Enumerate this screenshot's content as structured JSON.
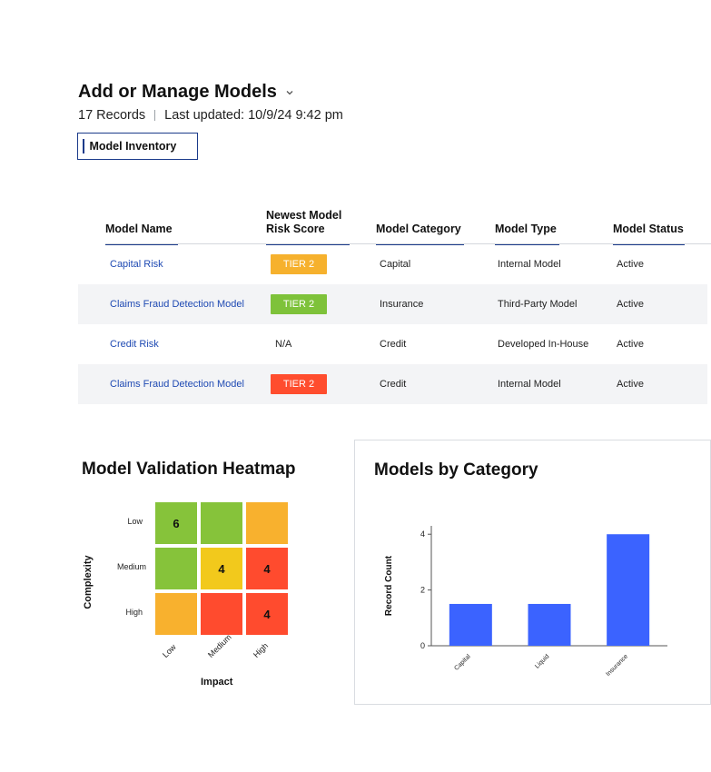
{
  "header": {
    "title": "Add or Manage Models",
    "records": "17 Records",
    "last_updated": "Last updated: 10/9/24 9:42 pm",
    "tab_label": "Model Inventory"
  },
  "table": {
    "columns": {
      "name": "Model Name",
      "score_line1": "Newest Model",
      "score_line2": "Risk Score",
      "category": "Model Category",
      "type": "Model Type",
      "status": "Model Status"
    },
    "rows": [
      {
        "name": "Capital Risk",
        "score": "TIER 2",
        "score_color": "#f6b12d",
        "category": "Capital",
        "type": "Internal Model",
        "status": "Active"
      },
      {
        "name": "Claims Fraud Detection Model",
        "score": "TIER 2",
        "score_color": "#7ec23a",
        "category": "Insurance",
        "type": "Third-Party Model",
        "status": "Active"
      },
      {
        "name": "Credit Risk",
        "score": "N/A",
        "score_color": "",
        "category": "Credit",
        "type": "Developed In-House",
        "status": "Active"
      },
      {
        "name": "Claims Fraud Detection Model",
        "score": "TIER 2",
        "score_color": "#ff4d2e",
        "category": "Credit",
        "type": "Internal Model",
        "status": "Active"
      }
    ]
  },
  "heatmap": {
    "title": "Model Validation Heatmap",
    "y_axis_label": "Complexity",
    "x_axis_label": "Impact",
    "y_labels": [
      "Low",
      "Medium",
      "High"
    ],
    "x_labels": [
      "Low",
      "Medium",
      "High"
    ],
    "cells": [
      [
        {
          "value": "6",
          "color": "#86c33a"
        },
        {
          "value": "",
          "color": "#86c33a"
        },
        {
          "value": "",
          "color": "#f8b12e"
        }
      ],
      [
        {
          "value": "",
          "color": "#86c33a"
        },
        {
          "value": "4",
          "color": "#f2c91c"
        },
        {
          "value": "4",
          "color": "#ff4b2e"
        }
      ],
      [
        {
          "value": "",
          "color": "#f8b12e"
        },
        {
          "value": "",
          "color": "#ff4b2e"
        },
        {
          "value": "4",
          "color": "#ff4b2e"
        }
      ]
    ]
  },
  "chart_data": {
    "type": "bar",
    "title": "Models by Category",
    "xlabel": "",
    "ylabel": "Record Count",
    "categories": [
      "Capital",
      "Liquid",
      "Insurance"
    ],
    "values": [
      1.5,
      1.5,
      4
    ],
    "yticks": [
      0,
      2,
      4
    ],
    "ylim": [
      0,
      4.3
    ],
    "bar_color": "#3b63ff",
    "grid": false
  }
}
